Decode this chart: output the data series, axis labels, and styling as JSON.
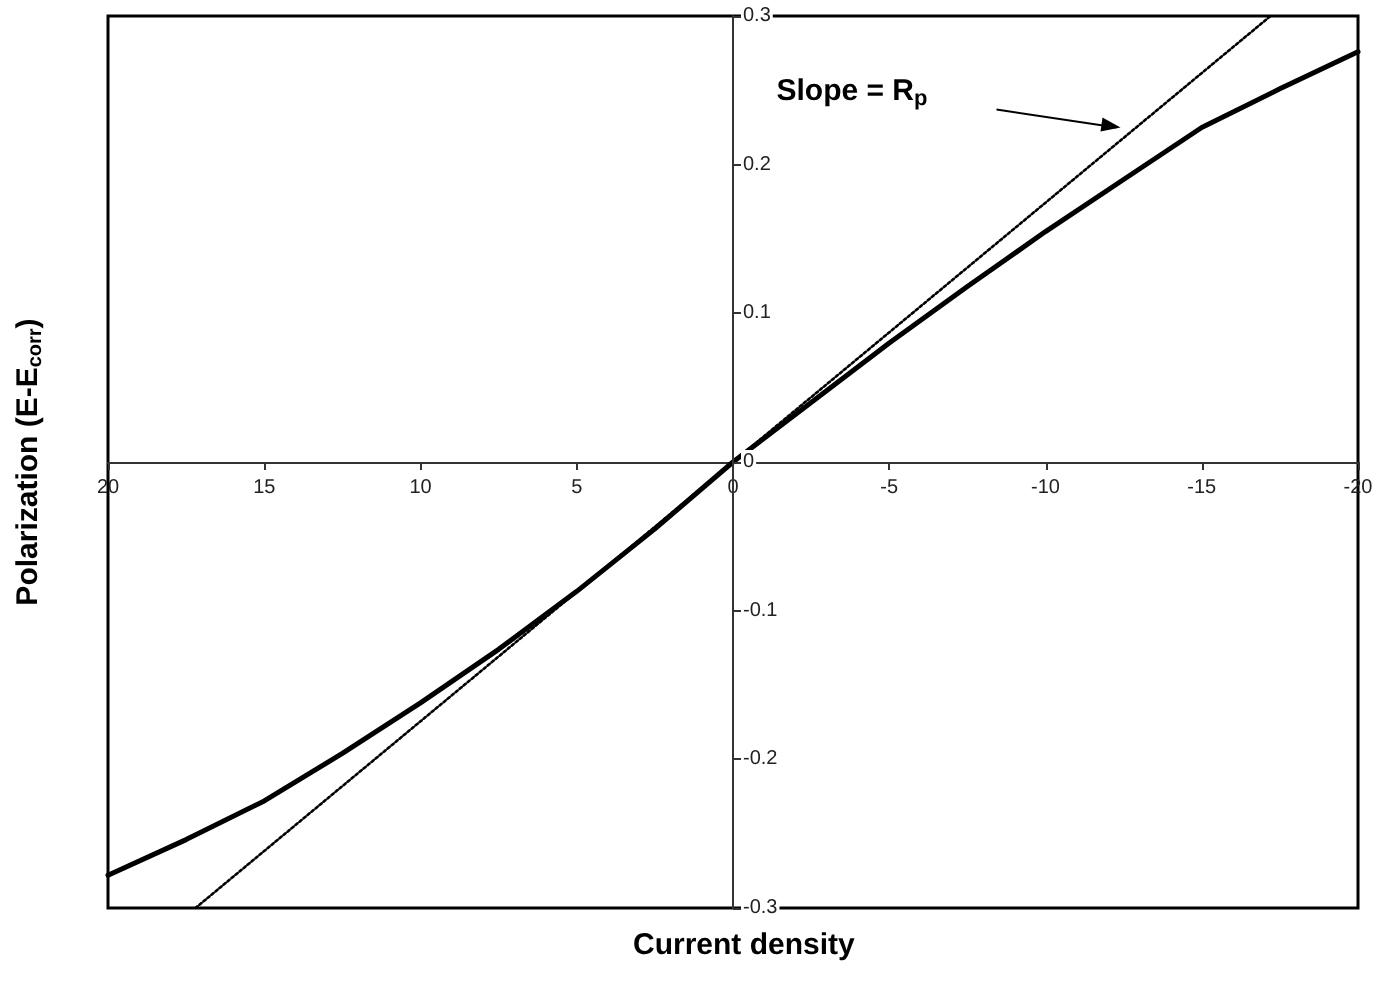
{
  "chart_data": {
    "type": "line",
    "xlabel": "Current density",
    "ylabel": "Polarization (E-E$_{corr}$)",
    "xlim": [
      20,
      -20
    ],
    "xticks": [
      20,
      15,
      10,
      5,
      0,
      -5,
      -10,
      -15,
      -20
    ],
    "ylim": [
      -0.3,
      0.3
    ],
    "yticks": [
      -0.3,
      -0.2,
      -0.1,
      0,
      0.1,
      0.2,
      0.3
    ],
    "grid": false,
    "marker": "none",
    "series": [
      {
        "color": "#000000",
        "line_style": "solid",
        "x": [
          20,
          17.5,
          15,
          12.5,
          10,
          7.5,
          5,
          2.5,
          0,
          -2.5,
          -5,
          -7.5,
          -10,
          -12.5,
          -15,
          -17.5,
          -20
        ],
        "values": [
          -0.278,
          -0.254,
          -0.228,
          -0.196,
          -0.162,
          -0.126,
          -0.087,
          -0.045,
          0,
          0.04,
          0.08,
          0.118,
          0.155,
          0.19,
          0.225,
          0.251,
          0.276
        ]
      },
      {
        "color": "#000000",
        "line_style": "dotted",
        "x": [
          17.2,
          -17.2
        ],
        "values": [
          -0.3,
          0.3
        ]
      }
    ],
    "annotations": [
      "Slope = R$_{p}$"
    ]
  }
}
